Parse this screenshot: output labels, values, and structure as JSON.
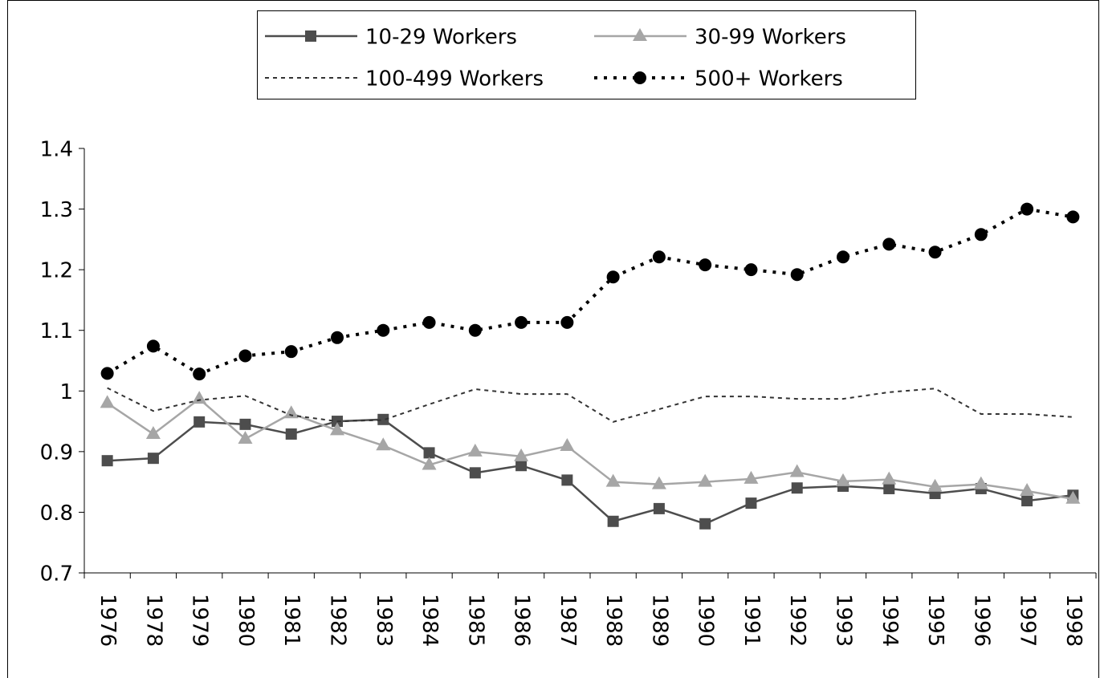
{
  "chart_data": {
    "type": "line",
    "categories": [
      "1976",
      "1978",
      "1979",
      "1980",
      "1981",
      "1982",
      "1983",
      "1984",
      "1985",
      "1986",
      "1987",
      "1988",
      "1989",
      "1990",
      "1991",
      "1992",
      "1993",
      "1994",
      "1995",
      "1996",
      "1997",
      "1998"
    ],
    "series": [
      {
        "name": "10-29 Workers",
        "color": "#4d4d4d",
        "marker": "square",
        "dash": "solid",
        "values": [
          0.885,
          0.889,
          0.949,
          0.945,
          0.929,
          0.95,
          0.953,
          0.898,
          0.865,
          0.877,
          0.853,
          0.785,
          0.806,
          0.781,
          0.815,
          0.84,
          0.843,
          0.839,
          0.831,
          0.839,
          0.819,
          0.828
        ]
      },
      {
        "name": "30-99 Workers",
        "color": "#a6a6a6",
        "marker": "triangle",
        "dash": "solid",
        "values": [
          0.98,
          0.929,
          0.987,
          0.921,
          0.963,
          0.935,
          0.91,
          0.878,
          0.9,
          0.892,
          0.909,
          0.85,
          0.846,
          0.85,
          0.855,
          0.866,
          0.851,
          0.854,
          0.842,
          0.846,
          0.835,
          0.822
        ]
      },
      {
        "name": "100-499 Workers",
        "color": "#333333",
        "marker": "none",
        "dash": "dashed",
        "values": [
          1.005,
          0.967,
          0.985,
          0.992,
          0.96,
          0.95,
          0.952,
          0.978,
          1.003,
          0.995,
          0.995,
          0.949,
          0.97,
          0.991,
          0.991,
          0.987,
          0.987,
          0.998,
          1.004,
          0.962,
          0.962,
          0.957
        ]
      },
      {
        "name": "500+ Workers",
        "color": "#000000",
        "marker": "circle",
        "dash": "dotted",
        "values": [
          1.029,
          1.074,
          1.028,
          1.058,
          1.065,
          1.088,
          1.1,
          1.113,
          1.1,
          1.113,
          1.113,
          1.188,
          1.221,
          1.208,
          1.2,
          1.192,
          1.221,
          1.242,
          1.229,
          1.258,
          1.3,
          1.287
        ]
      }
    ],
    "ylim": [
      0.7,
      1.4
    ],
    "yticks": [
      0.7,
      0.8,
      0.9,
      1,
      1.1,
      1.2,
      1.3,
      1.4
    ],
    "grid": false,
    "legend": "top"
  }
}
